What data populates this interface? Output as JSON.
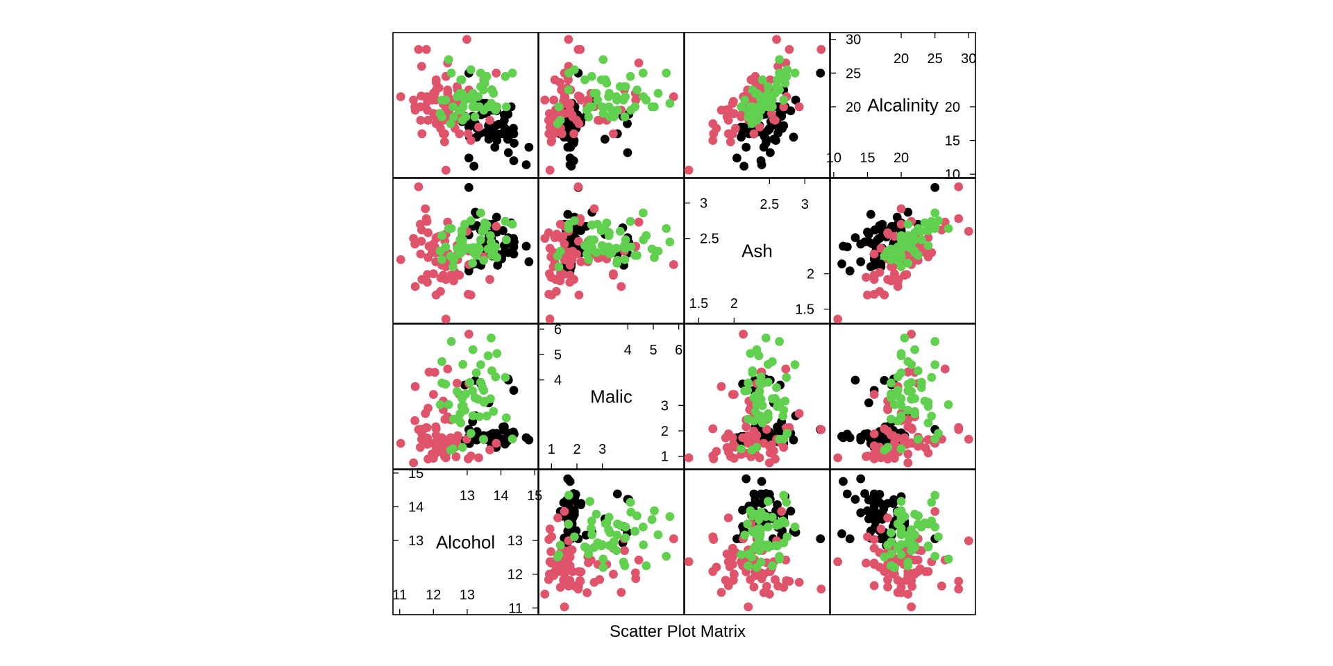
{
  "chart_data": {
    "type": "scatter",
    "subtype": "scatter-plot-matrix",
    "title": "",
    "xlabel": "Scatter Plot Matrix",
    "ylabel": "",
    "variables": [
      {
        "name": "Alcohol",
        "range": [
          10.8,
          15.1
        ],
        "ticks_low": [
          11,
          12,
          13
        ],
        "ticks_high": [
          13,
          14,
          15
        ],
        "diag_label_offset": 0
      },
      {
        "name": "Malic",
        "range": [
          0.5,
          6.2
        ],
        "ticks_low": [
          1,
          2,
          3
        ],
        "ticks_high": [
          4,
          5,
          6
        ],
        "diag_label_offset": 0
      },
      {
        "name": "Ash",
        "range": [
          1.3,
          3.35
        ],
        "ticks_low": [
          1.5,
          2.0
        ],
        "ticks_high": [
          2.5,
          3.0
        ],
        "diag_label_offset": 0
      },
      {
        "name": "Alcalinity",
        "range": [
          9.5,
          31
        ],
        "ticks_low": [
          10,
          15,
          20
        ],
        "ticks_high": [
          20,
          25,
          30
        ],
        "diag_label_offset": 0
      }
    ],
    "groups": [
      {
        "id": 1,
        "color": "#000000"
      },
      {
        "id": 2,
        "color": "#DF536B"
      },
      {
        "id": 3,
        "color": "#61D04F"
      }
    ],
    "grid": false,
    "legend": "none",
    "observations": [
      [
        14.23,
        1.71,
        2.43,
        15.6,
        1
      ],
      [
        13.2,
        1.78,
        2.14,
        11.2,
        1
      ],
      [
        13.16,
        2.36,
        2.67,
        18.6,
        1
      ],
      [
        14.37,
        1.95,
        2.5,
        16.8,
        1
      ],
      [
        13.24,
        2.59,
        2.87,
        21.0,
        1
      ],
      [
        14.2,
        1.76,
        2.45,
        15.2,
        1
      ],
      [
        14.39,
        1.87,
        2.45,
        14.6,
        1
      ],
      [
        14.06,
        2.15,
        2.61,
        17.6,
        1
      ],
      [
        14.83,
        1.64,
        2.17,
        14.0,
        1
      ],
      [
        13.86,
        1.35,
        2.27,
        16.0,
        1
      ],
      [
        14.1,
        2.16,
        2.3,
        18.0,
        1
      ],
      [
        14.12,
        1.48,
        2.32,
        16.8,
        1
      ],
      [
        13.75,
        1.73,
        2.41,
        16.0,
        1
      ],
      [
        14.75,
        1.73,
        2.39,
        11.4,
        1
      ],
      [
        14.38,
        1.87,
        2.38,
        12.0,
        1
      ],
      [
        13.63,
        1.81,
        2.7,
        17.2,
        1
      ],
      [
        14.3,
        1.92,
        2.72,
        20.0,
        1
      ],
      [
        13.83,
        1.57,
        2.62,
        20.0,
        1
      ],
      [
        14.19,
        1.59,
        2.48,
        16.5,
        1
      ],
      [
        13.64,
        3.1,
        2.56,
        15.2,
        1
      ],
      [
        14.06,
        1.63,
        2.28,
        16.0,
        1
      ],
      [
        12.93,
        3.8,
        2.65,
        18.6,
        1
      ],
      [
        13.71,
        1.86,
        2.36,
        16.6,
        1
      ],
      [
        12.85,
        1.6,
        2.52,
        17.8,
        1
      ],
      [
        13.5,
        1.81,
        2.61,
        20.0,
        1
      ],
      [
        13.05,
        2.05,
        3.22,
        25.0,
        1
      ],
      [
        13.39,
        1.77,
        2.62,
        16.1,
        1
      ],
      [
        13.3,
        1.72,
        2.14,
        17.0,
        1
      ],
      [
        13.87,
        1.9,
        2.8,
        19.4,
        1
      ],
      [
        14.02,
        1.68,
        2.21,
        16.0,
        1
      ],
      [
        13.73,
        1.5,
        2.7,
        22.5,
        1
      ],
      [
        13.58,
        1.66,
        2.36,
        19.1,
        1
      ],
      [
        13.68,
        1.83,
        2.36,
        17.2,
        1
      ],
      [
        13.76,
        1.53,
        2.7,
        19.5,
        1
      ],
      [
        13.51,
        1.8,
        2.65,
        19.0,
        1
      ],
      [
        13.48,
        1.81,
        2.41,
        20.5,
        1
      ],
      [
        13.28,
        1.64,
        2.84,
        15.5,
        1
      ],
      [
        13.05,
        1.65,
        2.55,
        18.0,
        1
      ],
      [
        13.07,
        1.5,
        2.1,
        15.5,
        1
      ],
      [
        14.22,
        3.99,
        2.51,
        13.2,
        1
      ],
      [
        13.56,
        1.71,
        2.31,
        16.2,
        1
      ],
      [
        13.41,
        3.84,
        2.12,
        18.8,
        1
      ],
      [
        13.88,
        1.89,
        2.59,
        15.0,
        1
      ],
      [
        13.24,
        3.98,
        2.29,
        17.5,
        1
      ],
      [
        13.05,
        1.77,
        2.1,
        17.0,
        1
      ],
      [
        14.21,
        4.04,
        2.44,
        18.9,
        1
      ],
      [
        14.38,
        3.59,
        2.28,
        16.0,
        1
      ],
      [
        13.9,
        1.68,
        2.12,
        16.0,
        1
      ],
      [
        14.1,
        2.02,
        2.4,
        18.8,
        1
      ],
      [
        13.94,
        1.73,
        2.27,
        17.4,
        1
      ],
      [
        13.05,
        1.73,
        2.04,
        12.4,
        1
      ],
      [
        13.83,
        1.65,
        2.6,
        17.2,
        1
      ],
      [
        13.82,
        1.75,
        2.42,
        14.0,
        1
      ],
      [
        13.77,
        1.9,
        2.68,
        17.1,
        1
      ],
      [
        13.74,
        1.67,
        2.25,
        16.4,
        1
      ],
      [
        13.56,
        1.73,
        2.46,
        20.5,
        1
      ],
      [
        14.22,
        1.7,
        2.3,
        16.3,
        1
      ],
      [
        13.29,
        1.97,
        2.68,
        16.8,
        1
      ],
      [
        13.72,
        1.43,
        2.5,
        16.7,
        1
      ],
      [
        12.37,
        0.94,
        1.36,
        10.6,
        2
      ],
      [
        12.33,
        1.1,
        2.28,
        16.0,
        2
      ],
      [
        12.64,
        1.36,
        2.02,
        16.8,
        2
      ],
      [
        13.67,
        1.25,
        1.92,
        18.0,
        2
      ],
      [
        12.37,
        1.13,
        2.16,
        19.0,
        2
      ],
      [
        12.17,
        1.45,
        2.53,
        19.0,
        2
      ],
      [
        12.37,
        1.21,
        2.56,
        18.1,
        2
      ],
      [
        13.11,
        1.01,
        1.7,
        15.0,
        2
      ],
      [
        12.37,
        1.17,
        1.92,
        19.6,
        2
      ],
      [
        13.34,
        0.94,
        2.36,
        17.0,
        2
      ],
      [
        12.21,
        1.19,
        1.75,
        16.8,
        2
      ],
      [
        12.29,
        1.61,
        2.21,
        20.4,
        2
      ],
      [
        13.86,
        1.51,
        2.67,
        25.0,
        2
      ],
      [
        13.49,
        1.66,
        2.24,
        24.0,
        2
      ],
      [
        12.99,
        1.67,
        2.6,
        30.0,
        2
      ],
      [
        11.96,
        1.09,
        2.3,
        21.0,
        2
      ],
      [
        11.66,
        1.88,
        1.92,
        16.0,
        2
      ],
      [
        13.03,
        0.9,
        1.71,
        16.0,
        2
      ],
      [
        11.84,
        2.89,
        2.23,
        18.0,
        2
      ],
      [
        12.33,
        0.99,
        1.95,
        14.8,
        2
      ],
      [
        12.7,
        3.87,
        2.4,
        23.0,
        2
      ],
      [
        12.0,
        0.92,
        2.0,
        19.0,
        2
      ],
      [
        12.72,
        1.81,
        2.2,
        18.8,
        2
      ],
      [
        12.08,
        1.13,
        2.51,
        24.0,
        2
      ],
      [
        13.05,
        3.86,
        2.32,
        22.5,
        2
      ],
      [
        11.84,
        0.89,
        2.58,
        18.0,
        2
      ],
      [
        12.67,
        0.98,
        2.24,
        18.0,
        2
      ],
      [
        12.16,
        1.61,
        2.31,
        22.8,
        2
      ],
      [
        11.65,
        1.67,
        2.62,
        26.0,
        2
      ],
      [
        11.64,
        2.06,
        2.46,
        21.6,
        2
      ],
      [
        12.08,
        1.33,
        2.3,
        23.6,
        2
      ],
      [
        12.08,
        1.83,
        2.32,
        18.5,
        2
      ],
      [
        12.0,
        1.51,
        2.42,
        22.0,
        2
      ],
      [
        12.69,
        1.53,
        2.26,
        20.7,
        2
      ],
      [
        12.29,
        2.83,
        2.22,
        18.0,
        2
      ],
      [
        11.62,
        1.99,
        2.28,
        18.0,
        2
      ],
      [
        12.47,
        1.52,
        2.2,
        19.0,
        2
      ],
      [
        11.81,
        2.12,
        2.74,
        21.5,
        2
      ],
      [
        12.29,
        1.41,
        1.98,
        16.0,
        2
      ],
      [
        12.37,
        1.07,
        2.1,
        18.5,
        2
      ],
      [
        12.29,
        3.17,
        2.21,
        18.0,
        2
      ],
      [
        12.08,
        2.08,
        1.7,
        17.5,
        2
      ],
      [
        12.6,
        1.34,
        1.9,
        18.5,
        2
      ],
      [
        12.34,
        2.45,
        2.46,
        21.0,
        2
      ],
      [
        11.82,
        1.72,
        1.88,
        19.5,
        2
      ],
      [
        12.51,
        1.73,
        1.98,
        20.5,
        2
      ],
      [
        12.42,
        2.55,
        2.27,
        22.0,
        2
      ],
      [
        12.25,
        1.73,
        2.12,
        19.0,
        2
      ],
      [
        12.72,
        1.75,
        2.28,
        22.5,
        2
      ],
      [
        12.22,
        1.29,
        1.94,
        19.0,
        2
      ],
      [
        11.61,
        1.35,
        2.7,
        20.0,
        2
      ],
      [
        11.46,
        3.74,
        1.82,
        19.5,
        2
      ],
      [
        12.52,
        2.43,
        2.17,
        21.0,
        2
      ],
      [
        11.76,
        2.68,
        2.92,
        20.0,
        2
      ],
      [
        11.41,
        0.74,
        2.5,
        21.0,
        2
      ],
      [
        12.08,
        1.39,
        2.5,
        22.5,
        2
      ],
      [
        11.03,
        1.51,
        2.2,
        21.5,
        2
      ],
      [
        11.82,
        1.47,
        1.99,
        20.8,
        2
      ],
      [
        12.42,
        1.61,
        2.19,
        22.5,
        2
      ],
      [
        12.77,
        3.43,
        1.98,
        16.0,
        2
      ],
      [
        12.0,
        3.43,
        2.0,
        19.0,
        2
      ],
      [
        11.45,
        2.4,
        2.42,
        20.0,
        2
      ],
      [
        11.56,
        2.05,
        3.23,
        28.5,
        2
      ],
      [
        12.42,
        4.43,
        2.73,
        26.5,
        2
      ],
      [
        13.05,
        5.8,
        2.13,
        21.5,
        2
      ],
      [
        11.87,
        4.31,
        2.39,
        21.0,
        2
      ],
      [
        12.07,
        2.16,
        2.17,
        21.0,
        2
      ],
      [
        12.43,
        1.53,
        2.29,
        21.5,
        2
      ],
      [
        11.79,
        2.13,
        2.78,
        28.5,
        2
      ],
      [
        12.37,
        1.63,
        2.3,
        24.5,
        2
      ],
      [
        12.04,
        4.3,
        2.38,
        22.0,
        2
      ],
      [
        12.86,
        1.35,
        2.32,
        18.0,
        3
      ],
      [
        12.88,
        2.99,
        2.4,
        20.0,
        3
      ],
      [
        12.81,
        2.31,
        2.4,
        24.0,
        3
      ],
      [
        12.7,
        3.55,
        2.36,
        21.5,
        3
      ],
      [
        12.51,
        1.24,
        2.25,
        17.5,
        3
      ],
      [
        12.6,
        2.46,
        2.2,
        18.5,
        3
      ],
      [
        12.25,
        4.72,
        2.54,
        21.0,
        3
      ],
      [
        12.53,
        5.51,
        2.64,
        25.0,
        3
      ],
      [
        13.49,
        3.59,
        2.19,
        19.5,
        3
      ],
      [
        12.84,
        2.96,
        2.61,
        24.0,
        3
      ],
      [
        12.93,
        2.81,
        2.7,
        21.0,
        3
      ],
      [
        13.36,
        2.56,
        2.35,
        20.0,
        3
      ],
      [
        13.52,
        3.17,
        2.72,
        23.5,
        3
      ],
      [
        13.62,
        4.95,
        2.35,
        20.0,
        3
      ],
      [
        12.25,
        3.88,
        2.2,
        18.5,
        3
      ],
      [
        13.16,
        3.57,
        2.15,
        21.0,
        3
      ],
      [
        13.88,
        5.04,
        2.23,
        20.0,
        3
      ],
      [
        12.87,
        4.61,
        2.48,
        21.5,
        3
      ],
      [
        13.32,
        3.24,
        2.38,
        21.5,
        3
      ],
      [
        13.08,
        3.9,
        2.36,
        21.5,
        3
      ],
      [
        13.5,
        3.12,
        2.62,
        24.0,
        3
      ],
      [
        12.79,
        2.67,
        2.48,
        22.0,
        3
      ],
      [
        13.11,
        1.9,
        2.75,
        25.5,
        3
      ],
      [
        13.23,
        3.3,
        2.28,
        18.5,
        3
      ],
      [
        12.58,
        1.29,
        2.1,
        20.0,
        3
      ],
      [
        13.17,
        5.19,
        2.32,
        22.0,
        3
      ],
      [
        13.84,
        4.12,
        2.38,
        19.5,
        3
      ],
      [
        12.45,
        3.03,
        2.64,
        27.0,
        3
      ],
      [
        14.34,
        1.68,
        2.7,
        25.0,
        3
      ],
      [
        13.48,
        1.67,
        2.64,
        22.5,
        3
      ],
      [
        12.36,
        3.83,
        2.38,
        21.0,
        3
      ],
      [
        13.69,
        3.26,
        2.54,
        20.0,
        3
      ],
      [
        12.85,
        3.27,
        2.58,
        22.0,
        3
      ],
      [
        12.96,
        3.45,
        2.35,
        18.5,
        3
      ],
      [
        13.78,
        2.76,
        2.3,
        22.0,
        3
      ],
      [
        13.73,
        4.36,
        2.26,
        22.5,
        3
      ],
      [
        13.45,
        3.7,
        2.6,
        23.0,
        3
      ],
      [
        12.82,
        3.37,
        2.3,
        19.5,
        3
      ],
      [
        13.58,
        2.58,
        2.69,
        24.5,
        3
      ],
      [
        13.4,
        4.6,
        2.86,
        25.0,
        3
      ],
      [
        12.2,
        3.03,
        2.32,
        19.0,
        3
      ],
      [
        12.77,
        2.39,
        2.28,
        19.5,
        3
      ],
      [
        14.16,
        2.51,
        2.48,
        20.0,
        3
      ],
      [
        13.71,
        5.65,
        2.45,
        20.5,
        3
      ],
      [
        13.4,
        3.91,
        2.48,
        23.0,
        3
      ],
      [
        13.27,
        4.28,
        2.26,
        20.0,
        3
      ],
      [
        13.17,
        2.59,
        2.37,
        20.0,
        3
      ],
      [
        14.13,
        4.1,
        2.74,
        24.5,
        3
      ]
    ]
  }
}
